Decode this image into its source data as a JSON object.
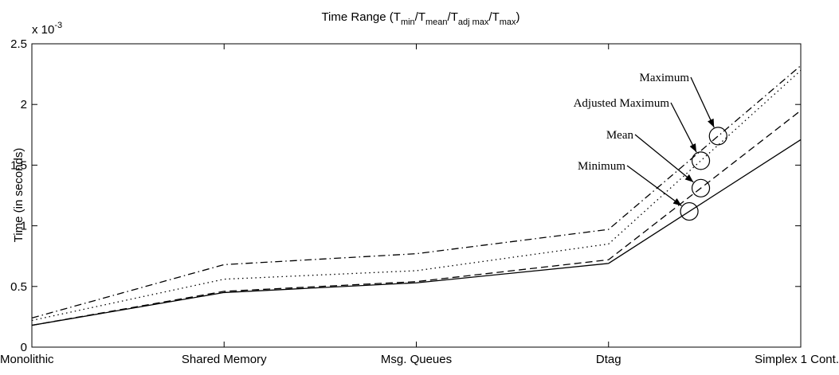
{
  "chart_data": {
    "type": "line",
    "title": [
      "Time Range (T",
      "min",
      "/T",
      "mean",
      "/T",
      "adj max",
      "/T",
      "max",
      ")"
    ],
    "y_label": "Time (in seconds)",
    "y_multiplier": {
      "base": "x 10",
      "exponent": "-3"
    },
    "categories": [
      "Monolithic",
      "Shared Memory",
      "Msg. Queues",
      "Dtag",
      "Simplex 1 Cont."
    ],
    "series": [
      {
        "name": "Minimum",
        "color": "#000000",
        "style": "solid",
        "values": [
          0.18,
          0.45,
          0.53,
          0.69,
          1.71
        ]
      },
      {
        "name": "Mean",
        "color": "#000000",
        "style": "dashed",
        "values": [
          0.18,
          0.46,
          0.54,
          0.72,
          1.95
        ]
      },
      {
        "name": "Adjusted Maximum",
        "color": "#000000",
        "style": "dotted",
        "values": [
          0.22,
          0.56,
          0.63,
          0.85,
          2.28
        ]
      },
      {
        "name": "Maximum",
        "color": "#000000",
        "style": "dashdot",
        "values": [
          0.24,
          0.68,
          0.77,
          0.97,
          2.32
        ]
      }
    ],
    "ylim": [
      0,
      2.5
    ],
    "yticks": [
      0,
      0.5,
      1,
      1.5,
      2,
      2.5
    ],
    "grid": false
  }
}
